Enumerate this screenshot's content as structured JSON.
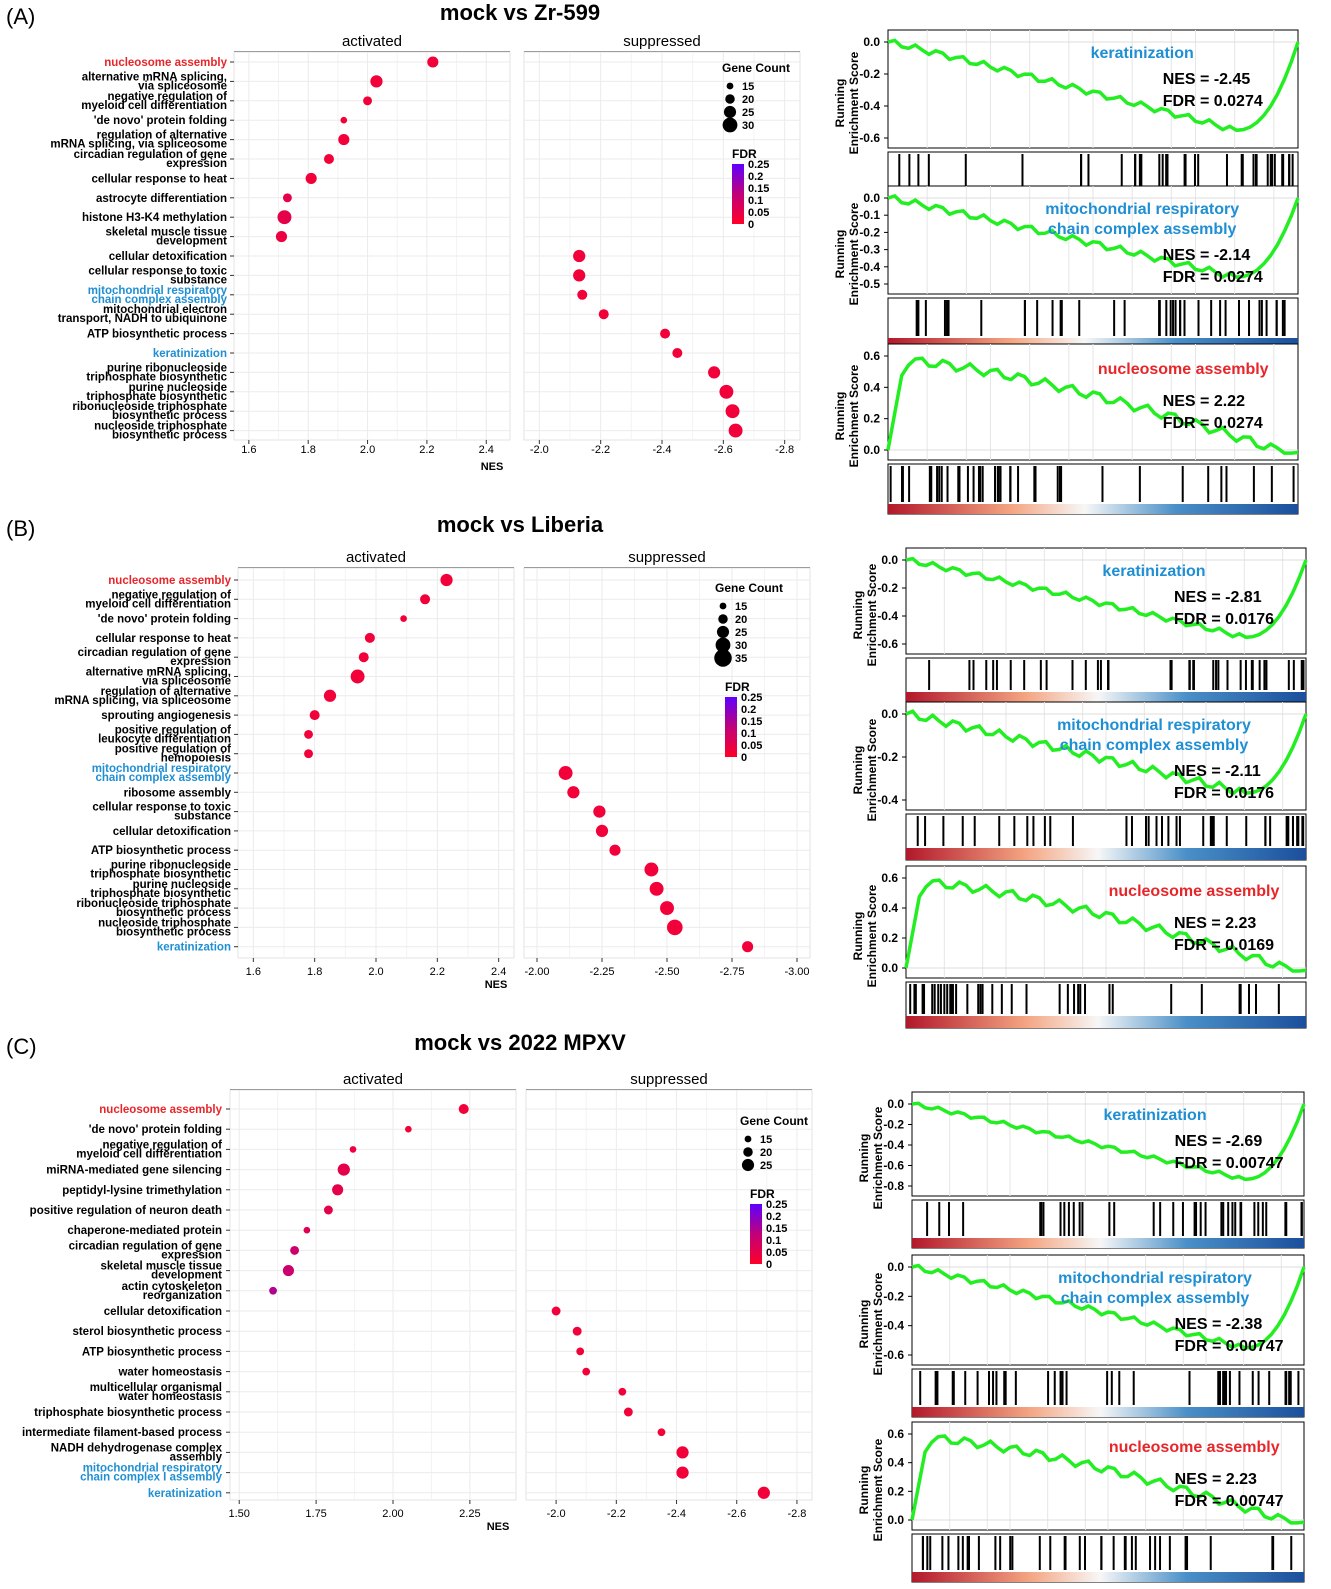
{
  "panels": [
    {
      "letter": "(A)",
      "title": "mock vs Zr-599",
      "dotplot": {
        "activated_label": "activated",
        "suppressed_label": "suppressed",
        "xlabel": "NES",
        "legend_gc_title": "Gene Count",
        "legend_gc": [
          "15",
          "20",
          "25",
          "30"
        ],
        "legend_fdr_title": "FDR",
        "legend_fdr": [
          "0.25",
          "0.2",
          "0.15",
          "0.1",
          "0.05",
          "0"
        ],
        "act_ticks": [
          "1.6",
          "1.8",
          "2.0",
          "2.2",
          "2.4"
        ],
        "sup_ticks": [
          "-2.0",
          "-2.2",
          "-2.4",
          "-2.6",
          "-2.8"
        ]
      },
      "gsea": [
        {
          "name": "keratinization",
          "color": "#1f8fd4",
          "nes": "NES = -2.45",
          "fdr": "FDR = 0.0274",
          "yticks": [
            "0.0",
            "-0.2",
            "-0.4",
            "-0.6"
          ],
          "ylabel": [
            "Running",
            "Enrichment Score"
          ]
        },
        {
          "name": "mitochondrial respiratory\nchain complex assembly",
          "color": "#1f8fd4",
          "nes": "NES = -2.14",
          "fdr": "FDR = 0.0274",
          "yticks": [
            "0.0",
            "-0.1",
            "-0.2",
            "-0.3",
            "-0.4",
            "-0.5"
          ],
          "ylabel": [
            "Running",
            "Enrichment Score"
          ]
        },
        {
          "name": "nucleosome assembly",
          "color": "#e8262a",
          "nes": "NES = 2.22",
          "fdr": "FDR = 0.0274",
          "yticks": [
            "0.6",
            "0.4",
            "0.2",
            "0.0"
          ],
          "ylabel": [
            "Running",
            "Enrichment Score"
          ]
        }
      ]
    },
    {
      "letter": "(B)",
      "title": "mock vs Liberia",
      "dotplot": {
        "activated_label": "activated",
        "suppressed_label": "suppressed",
        "xlabel": "NES",
        "legend_gc_title": "Gene Count",
        "legend_gc": [
          "15",
          "20",
          "25",
          "30",
          "35"
        ],
        "legend_fdr_title": "FDR",
        "legend_fdr": [
          "0.25",
          "0.2",
          "0.15",
          "0.1",
          "0.05",
          "0"
        ],
        "act_ticks": [
          "1.6",
          "1.8",
          "2.0",
          "2.2",
          "2.4"
        ],
        "sup_ticks": [
          "-2.00",
          "-2.25",
          "-2.50",
          "-2.75",
          "-3.00"
        ]
      },
      "gsea": [
        {
          "name": "keratinization",
          "color": "#1f8fd4",
          "nes": "NES = -2.81",
          "fdr": "FDR = 0.0176",
          "yticks": [
            "0.0",
            "-0.2",
            "-0.4",
            "-0.6"
          ],
          "ylabel": [
            "Running",
            "Enrichment Score"
          ]
        },
        {
          "name": "mitochondrial respiratory\nchain complex assembly",
          "color": "#1f8fd4",
          "nes": "NES = -2.11",
          "fdr": "FDR = 0.0176",
          "yticks": [
            "0.0",
            "-0.2",
            "-0.4"
          ],
          "ylabel": [
            "Running",
            "Enrichment Score"
          ]
        },
        {
          "name": "nucleosome assembly",
          "color": "#e8262a",
          "nes": "NES = 2.23",
          "fdr": "FDR = 0.0169",
          "yticks": [
            "0.6",
            "0.4",
            "0.2",
            "0.0"
          ],
          "ylabel": [
            "Running",
            "Enrichment Score"
          ]
        }
      ]
    },
    {
      "letter": "(C)",
      "title": "mock vs 2022 MPXV",
      "dotplot": {
        "activated_label": "activated",
        "suppressed_label": "suppressed",
        "xlabel": "NES",
        "legend_gc_title": "Gene Count",
        "legend_gc": [
          "15",
          "20",
          "25"
        ],
        "legend_fdr_title": "FDR",
        "legend_fdr": [
          "0.25",
          "0.2",
          "0.15",
          "0.1",
          "0.05",
          "0"
        ],
        "act_ticks": [
          "1.50",
          "1.75",
          "2.00",
          "2.25"
        ],
        "sup_ticks": [
          "-2.0",
          "-2.2",
          "-2.4",
          "-2.6",
          "-2.8"
        ]
      },
      "gsea": [
        {
          "name": "keratinization",
          "color": "#1f8fd4",
          "nes": "NES = -2.69",
          "fdr": "FDR = 0.00747",
          "yticks": [
            "0.0",
            "-0.2",
            "-0.4",
            "-0.6",
            "-0.8"
          ],
          "ylabel": [
            "Running",
            "Enrichment Score"
          ]
        },
        {
          "name": "mitochondrial respiratory\nchain complex assembly",
          "color": "#1f8fd4",
          "nes": "NES = -2.38",
          "fdr": "FDR = 0.00747",
          "yticks": [
            "0.0",
            "-0.2",
            "-0.4",
            "-0.6"
          ],
          "ylabel": [
            "Running",
            "Enrichment Score"
          ]
        },
        {
          "name": "nucleosome assembly",
          "color": "#e8262a",
          "nes": "NES = 2.23",
          "fdr": "FDR = 0.00747",
          "yticks": [
            "0.6",
            "0.4",
            "0.2",
            "0.0"
          ],
          "ylabel": [
            "Running",
            "Enrichment Score"
          ]
        }
      ]
    }
  ],
  "chart_data": [
    {
      "type": "scatter",
      "title": "mock vs Zr-599",
      "xlabel": "NES",
      "categories": [
        "nucleosome assembly",
        "alternative mRNA splicing,\nvia spliceosome",
        "negative regulation of\nmyeloid cell differentiation",
        "'de novo' protein folding",
        "regulation of alternative\nmRNA splicing, via spliceosome",
        "circadian regulation of gene\nexpression",
        "cellular response to heat",
        "astrocyte differentiation",
        "histone H3-K4 methylation",
        "skeletal muscle tissue\ndevelopment",
        "cellular detoxification",
        "cellular response to toxic\nsubstance",
        "mitochondrial respiratory\nchain complex assembly",
        "mitochondrial electron\ntransport, NADH to ubiquinone",
        "ATP biosynthetic process",
        "keratinization",
        "purine ribonucleoside\ntriphosphate biosynthetic",
        "purine nucleoside\ntriphosphate biosynthetic",
        "ribonucleoside triphosphate\nbiosynthetic process",
        "nucleoside triphosphate\nbiosynthetic process"
      ],
      "label_colors": {
        "nucleosome assembly": "#e8262a",
        "mitochondrial respiratory\nchain complex assembly": "#1f8fd4",
        "keratinization": "#1f8fd4"
      },
      "activated": {
        "xlim": [
          1.55,
          2.48
        ],
        "values": [
          2.22,
          2.03,
          2.0,
          1.92,
          1.92,
          1.87,
          1.81,
          1.73,
          1.72,
          1.71
        ],
        "gene_count": [
          22,
          24,
          18,
          14,
          22,
          20,
          22,
          18,
          27,
          22
        ],
        "fdr": [
          0.02,
          0.02,
          0.02,
          0.02,
          0.02,
          0.02,
          0.02,
          0.04,
          0.04,
          0.03
        ]
      },
      "suppressed": {
        "xlim": [
          -1.95,
          -2.85
        ],
        "values": [
          -2.13,
          -2.13,
          -2.14,
          -2.21,
          -2.41,
          -2.45,
          -2.57,
          -2.61,
          -2.63,
          -2.64
        ],
        "gene_count": [
          24,
          24,
          20,
          20,
          20,
          20,
          24,
          27,
          27,
          27
        ],
        "fdr": [
          0.02,
          0.02,
          0.02,
          0.02,
          0.02,
          0.02,
          0.02,
          0.02,
          0.02,
          0.02
        ]
      },
      "legend": {
        "gene_count": [
          15,
          20,
          25,
          30
        ],
        "fdr": [
          0.25,
          0.2,
          0.15,
          0.1,
          0.05,
          0
        ]
      }
    },
    {
      "type": "scatter",
      "title": "mock vs Liberia",
      "xlabel": "NES",
      "categories": [
        "nucleosome assembly",
        "negative regulation of\nmyeloid cell differentiation",
        "'de novo' protein folding",
        "cellular response to heat",
        "circadian regulation of gene\nexpression",
        "alternative mRNA splicing,\nvia spliceosome",
        "regulation of alternative\nmRNA splicing, via spliceosome",
        "sprouting angiogenesis",
        "positive regulation of\nleukocyte differentiation",
        "positive regulation of\nhemopoiesis",
        "mitochondrial respiratory\nchain complex assembly",
        "ribosome assembly",
        "cellular response to toxic\nsubstance",
        "cellular detoxification",
        "ATP biosynthetic process",
        "purine ribonucleoside\ntriphosphate biosynthetic",
        "purine nucleoside\ntriphosphate biosynthetic",
        "ribonucleoside triphosphate\nbiosynthetic process",
        "nucleoside triphosphate\nbiosynthetic process",
        "keratinization"
      ],
      "label_colors": {
        "nucleosome assembly": "#e8262a",
        "mitochondrial respiratory\nchain complex assembly": "#1f8fd4",
        "keratinization": "#1f8fd4"
      },
      "activated": {
        "xlim": [
          1.55,
          2.45
        ],
        "values": [
          2.23,
          2.16,
          2.09,
          1.98,
          1.96,
          1.94,
          1.85,
          1.8,
          1.78,
          1.78
        ],
        "gene_count": [
          24,
          20,
          14,
          20,
          20,
          27,
          24,
          20,
          18,
          18
        ],
        "fdr": [
          0.02,
          0.02,
          0.02,
          0.02,
          0.02,
          0.02,
          0.02,
          0.02,
          0.02,
          0.02
        ]
      },
      "suppressed": {
        "xlim": [
          -1.95,
          -3.05
        ],
        "values": [
          -2.11,
          -2.14,
          -2.24,
          -2.25,
          -2.3,
          -2.44,
          -2.46,
          -2.5,
          -2.53,
          -2.81
        ],
        "gene_count": [
          27,
          24,
          24,
          24,
          22,
          27,
          27,
          27,
          30,
          22
        ],
        "fdr": [
          0.02,
          0.02,
          0.02,
          0.02,
          0.02,
          0.02,
          0.02,
          0.02,
          0.02,
          0.02
        ]
      },
      "legend": {
        "gene_count": [
          15,
          20,
          25,
          30,
          35
        ],
        "fdr": [
          0.25,
          0.2,
          0.15,
          0.1,
          0.05,
          0
        ]
      }
    },
    {
      "type": "scatter",
      "title": "mock vs 2022 MPXV",
      "xlabel": "NES",
      "categories": [
        "nucleosome assembly",
        "'de novo' protein folding",
        "negative regulation of\nmyeloid cell differentiation",
        "miRNA-mediated gene silencing",
        "peptidyl-lysine trimethylation",
        "positive regulation of neuron death",
        "chaperone-mediated protein",
        "circadian regulation of gene\nexpression",
        "skeletal muscle tissue\ndevelopment",
        "actin cytoskeleton\nreorganization",
        "cellular detoxification",
        "sterol biosynthetic process",
        "ATP biosynthetic process",
        "water homeostasis",
        "multicellular organismal\nwater homeostasis",
        "triphosphate biosynthetic process",
        "intermediate filament-based process",
        "NADH dehydrogenase complex\nassembly",
        "mitochondrial respiratory\nchain complex I assembly",
        "keratinization"
      ],
      "label_colors": {
        "nucleosome assembly": "#e8262a",
        "mitochondrial respiratory\nchain complex I assembly": "#1f8fd4",
        "keratinization": "#1f8fd4"
      },
      "activated": {
        "xlim": [
          1.47,
          2.4
        ],
        "values": [
          2.23,
          2.05,
          1.87,
          1.84,
          1.82,
          1.79,
          1.72,
          1.68,
          1.66,
          1.61
        ],
        "gene_count": [
          20,
          14,
          14,
          24,
          22,
          18,
          14,
          18,
          22,
          16
        ],
        "fdr": [
          0.02,
          0.02,
          0.03,
          0.04,
          0.04,
          0.04,
          0.05,
          0.08,
          0.08,
          0.12
        ]
      },
      "suppressed": {
        "xlim": [
          -1.9,
          -2.85
        ],
        "values": [
          -2.0,
          -2.07,
          -2.08,
          -2.1,
          -2.22,
          -2.24,
          -2.35,
          -2.42,
          -2.42,
          -2.69
        ],
        "gene_count": [
          18,
          18,
          16,
          16,
          16,
          18,
          16,
          24,
          24,
          24
        ],
        "fdr": [
          0.02,
          0.02,
          0.02,
          0.02,
          0.02,
          0.02,
          0.02,
          0.02,
          0.02,
          0.02
        ]
      },
      "legend": {
        "gene_count": [
          15,
          20,
          25
        ],
        "fdr": [
          0.25,
          0.2,
          0.15,
          0.1,
          0.05,
          0
        ]
      }
    }
  ]
}
